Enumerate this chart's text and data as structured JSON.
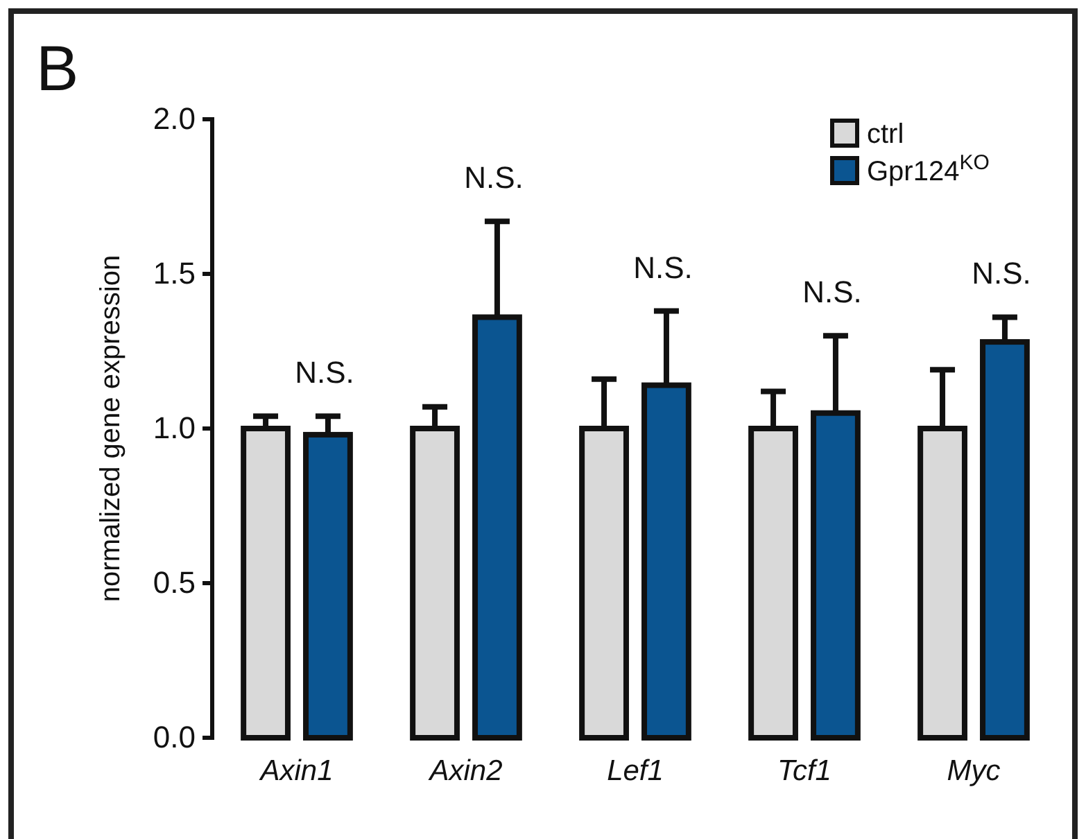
{
  "chart_data": {
    "type": "bar",
    "ylabel": "normalized gene expression",
    "categories": [
      "Axin1",
      "Axin2",
      "Lef1",
      "Tcf1",
      "Myc"
    ],
    "series": [
      {
        "name": "ctrl",
        "color": "#d9d9d9",
        "values": [
          1.0,
          1.0,
          1.0,
          1.0,
          1.0
        ],
        "errors": [
          [
            1.0,
            1.04
          ],
          [
            1.0,
            1.07
          ],
          [
            1.0,
            1.16
          ],
          [
            1.0,
            1.12
          ],
          [
            1.0,
            1.19
          ]
        ]
      },
      {
        "name": "Gpr124$^{KO}$",
        "color": "#0b5591",
        "values": [
          0.98,
          1.36,
          1.14,
          1.05,
          1.28
        ],
        "errors": [
          [
            0.98,
            1.04
          ],
          [
            1.36,
            1.67
          ],
          [
            1.14,
            1.38
          ],
          [
            1.05,
            1.3
          ],
          [
            1.28,
            1.36
          ]
        ]
      }
    ],
    "ylim": [
      0,
      2.0
    ],
    "yticks": [
      {
        "value": 0,
        "label": "0.0"
      },
      {
        "value": 0.5,
        "label": "0.5"
      },
      {
        "value": 1,
        "label": "1.0"
      },
      {
        "value": 1.5,
        "label": "1.5"
      },
      {
        "value": 2,
        "label": "2.0"
      }
    ],
    "grid": false,
    "legend": "top right",
    "annotations": [
      "B",
      "N.S.",
      "N.S.",
      "N.S.",
      "N.S.",
      "N.S."
    ]
  }
}
